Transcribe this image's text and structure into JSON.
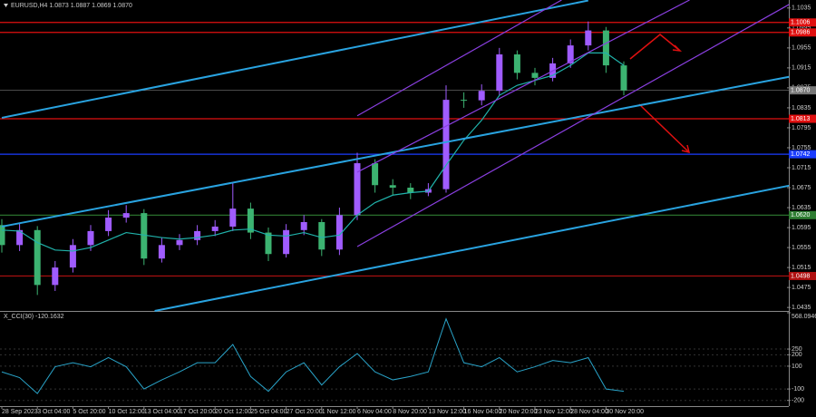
{
  "chart_data": [
    {
      "type": "candlestick",
      "title": "EURUSD,H4  1.0873 1.0887 1.0869 1.0870",
      "categories": [
        "28 Sep 2023",
        null,
        "3 Oct 04:00",
        null,
        "5 Oct 20:00",
        null,
        "10 Oct 12:00",
        null,
        "13 Oct 04:00",
        null,
        "17 Oct 20:00",
        null,
        "20 Oct 12:00",
        null,
        "25 Oct 04:00",
        null,
        "27 Oct 20:00",
        null,
        "1 Nov 12:00",
        null,
        "6 Nov 04:00",
        null,
        "8 Nov 20:00",
        null,
        "13 Nov 12:00",
        null,
        "16 Nov 04:00",
        null,
        "20 Nov 20:00",
        null,
        "23 Nov 12:00",
        null,
        "28 Nov 04:00",
        null,
        "30 Nov 20:00",
        null
      ],
      "open": [
        1.06,
        1.056,
        1.059,
        1.048,
        1.0515,
        1.056,
        1.0588,
        1.0615,
        1.0624,
        1.0533,
        1.056,
        1.057,
        1.0588,
        1.0597,
        1.0633,
        1.0585,
        1.0542,
        1.059,
        1.0606,
        1.0551,
        1.062,
        1.0724,
        1.068,
        1.0675,
        1.0665,
        1.0672,
        1.0851,
        1.085,
        1.0869,
        1.0942,
        1.0905,
        1.0895,
        1.0924,
        1.096,
        1.099,
        1.092
      ],
      "high": [
        1.0612,
        1.0605,
        1.0598,
        1.0528,
        1.0572,
        1.06,
        1.063,
        1.064,
        1.0632,
        1.0575,
        1.0582,
        1.06,
        1.061,
        1.0685,
        1.0645,
        1.0595,
        1.0602,
        1.062,
        1.0612,
        1.0635,
        1.0745,
        1.0732,
        1.0692,
        1.0684,
        1.0684,
        1.088,
        1.0866,
        1.0882,
        1.0955,
        1.095,
        1.0915,
        1.0935,
        1.0972,
        1.1008,
        1.0997,
        1.0928
      ],
      "low": [
        1.0545,
        1.0548,
        1.046,
        1.0468,
        1.0505,
        1.0548,
        1.0578,
        1.0605,
        1.052,
        1.0525,
        1.055,
        1.056,
        1.0578,
        1.0588,
        1.0572,
        1.0528,
        1.0535,
        1.058,
        1.0538,
        1.054,
        1.061,
        1.0665,
        1.066,
        1.0652,
        1.0658,
        1.0665,
        1.0835,
        1.084,
        1.086,
        1.0892,
        1.088,
        1.0888,
        1.0915,
        1.095,
        1.0905,
        1.086
      ],
      "close": [
        1.056,
        1.059,
        1.048,
        1.0515,
        1.056,
        1.0588,
        1.0615,
        1.0624,
        1.0533,
        1.056,
        1.057,
        1.0588,
        1.0597,
        1.0633,
        1.0585,
        1.0542,
        1.059,
        1.0606,
        1.0551,
        1.062,
        1.0724,
        1.068,
        1.0675,
        1.0665,
        1.0672,
        1.0851,
        1.085,
        1.0869,
        1.0942,
        1.0905,
        1.0895,
        1.0924,
        1.096,
        1.099,
        1.092,
        1.087
      ],
      "bull_color": "#a05cff",
      "bear_color": "#3cb371",
      "moving_average": {
        "color": "#20b2aa",
        "values": [
          1.059,
          1.0588,
          1.0565,
          1.055,
          1.0548,
          1.0555,
          1.057,
          1.0585,
          1.058,
          1.0575,
          1.0572,
          1.0575,
          1.058,
          1.059,
          1.0592,
          1.058,
          1.0578,
          1.0585,
          1.0575,
          1.058,
          1.062,
          1.0645,
          1.066,
          1.0665,
          1.0668,
          1.072,
          1.077,
          1.081,
          1.086,
          1.088,
          1.089,
          1.09,
          1.092,
          1.0945,
          1.0945,
          1.092
        ]
      },
      "trend_lines": [
        {
          "color": "#29a3e0",
          "x": [
            0,
            33
          ],
          "y": [
            1.0815,
            1.105
          ]
        },
        {
          "color": "#29a3e0",
          "x": [
            0,
            44.3
          ],
          "y": [
            1.0597,
            1.0897
          ]
        },
        {
          "color": "#29a3e0",
          "x": [
            8.6,
            44.3
          ],
          "y": [
            1.0428,
            1.0679
          ]
        },
        {
          "color": "#8a3fe0",
          "x": [
            20,
            31.5
          ],
          "y": [
            1.0819,
            1.1051
          ]
        },
        {
          "color": "#8a3fe0",
          "x": [
            20,
            38.7
          ],
          "y": [
            1.0706,
            1.1051
          ]
        },
        {
          "color": "#8a3fe0",
          "x": [
            20,
            44.3
          ],
          "y": [
            1.0557,
            1.1042
          ]
        }
      ],
      "levels": [
        {
          "value": 1.1006,
          "color": "#e01010"
        },
        {
          "value": 1.0986,
          "color": "#e01010"
        },
        {
          "value": 1.0813,
          "color": "#e01010"
        },
        {
          "value": 1.0742,
          "color": "#1a3cff"
        },
        {
          "value": 1.062,
          "label": "1.0620",
          "color": "#2e7d32"
        },
        {
          "value": 1.0498,
          "color": "#b01010"
        }
      ],
      "current": {
        "value": 1.087,
        "label": "1.0870",
        "color": "#777777"
      },
      "ylim": [
        1.0428,
        1.1051
      ],
      "yticks": [
        1.1035,
        1.0995,
        1.0955,
        1.0915,
        1.0875,
        1.0835,
        1.0795,
        1.0755,
        1.0715,
        1.0675,
        1.0635,
        1.0595,
        1.0555,
        1.0515,
        1.0475,
        1.0435
      ]
    },
    {
      "type": "line",
      "title": "X_CCI(30) -120.1632",
      "color": "#29a3c8",
      "values": [
        50,
        0,
        -140,
        95,
        130,
        95,
        175,
        95,
        -100,
        -20,
        50,
        130,
        130,
        290,
        10,
        -120,
        50,
        130,
        -65,
        95,
        210,
        50,
        -20,
        10,
        50,
        515,
        130,
        95,
        175,
        50,
        95,
        150,
        130,
        175,
        -100,
        -120
      ],
      "ylim": [
        -250,
        568.0946
      ],
      "yticks": [
        568.0946,
        250,
        200,
        100,
        -100,
        -200
      ]
    }
  ]
}
